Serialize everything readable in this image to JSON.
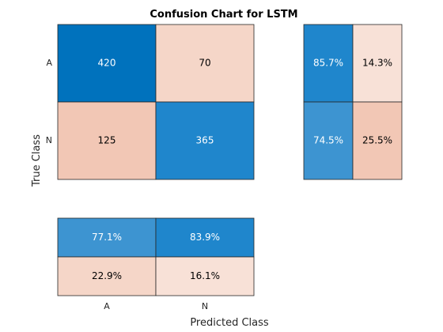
{
  "chart_data": {
    "type": "heatmap",
    "title": "Confusion Chart for LSTM",
    "xlabel": "Predicted Class",
    "ylabel": "True Class",
    "classes": [
      "A",
      "N"
    ],
    "matrix": [
      [
        420,
        70
      ],
      [
        125,
        365
      ]
    ],
    "row_summary": [
      [
        "85.7%",
        "14.3%"
      ],
      [
        "74.5%",
        "25.5%"
      ]
    ],
    "column_summary": [
      [
        "77.1%",
        "83.9%"
      ],
      [
        "22.9%",
        "16.1%"
      ]
    ],
    "colors": {
      "diag_strong": "#0072bd",
      "diag_medium": "#1f86cc",
      "diag_light": "#3d94d1",
      "off_strong": "#f2c7b5",
      "off_medium": "#f5d6c8",
      "off_light": "#f8e1d7",
      "text_dark": "#000000",
      "text_light": "#ffffff",
      "border": "#262626"
    }
  }
}
